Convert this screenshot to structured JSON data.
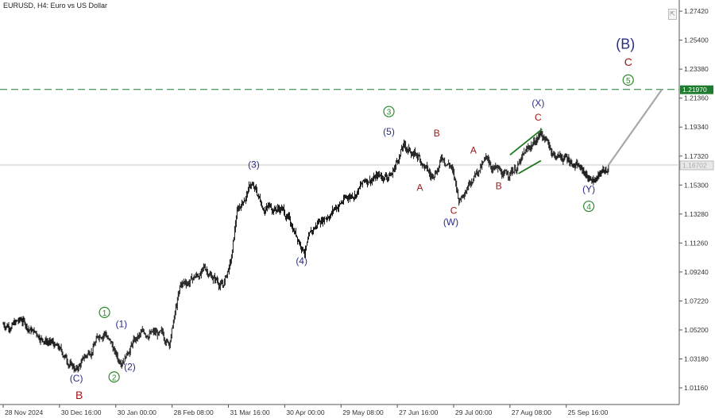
{
  "window": {
    "title": "EURUSD, H4:  Euro vs US Dollar"
  },
  "colors": {
    "candle": "#000000",
    "grid_line": "#c8c8c8",
    "dashed_level": "#5c9a6a",
    "price_label_bg": "#1e7a2e",
    "current_label_bg": "#e8e8e8",
    "wave_blue": "#2a2d87",
    "wave_red": "#a3161a",
    "wave_green": "#2c8a2c",
    "projection": "#a8a8a8",
    "trendline": "#1f7a1f"
  },
  "chart_data": {
    "type": "candlestick",
    "symbol": "EURUSD",
    "timeframe": "H4",
    "ylim": [
      1.0,
      1.282
    ],
    "y_ticks": [
      "1.27420",
      "1.25400",
      "1.23380",
      "1.21360",
      "1.19340",
      "1.17320",
      "1.15300",
      "1.13280",
      "1.11260",
      "1.09240",
      "1.07220",
      "1.05200",
      "1.03180",
      "1.01160"
    ],
    "x_ticks": [
      "28 Nov 2024",
      "30 Dec 16:00",
      "30 Jan 00:00",
      "28 Feb 08:00",
      "31 Mar 16:00",
      "30 Apr 00:00",
      "29 May 08:00",
      "27 Jun 16:00",
      "29 Jul 00:00",
      "27 Aug 08:00",
      "25 Sep 16:00"
    ],
    "price_path": [
      {
        "t": 0.0,
        "p": 1.056
      },
      {
        "t": 0.35,
        "p": 1.058
      },
      {
        "t": 0.5,
        "p": 1.052
      },
      {
        "t": 0.8,
        "p": 1.045
      },
      {
        "t": 1.1,
        "p": 1.033
      },
      {
        "t": 1.3,
        "p": 1.024
      },
      {
        "t": 1.5,
        "p": 1.035
      },
      {
        "t": 1.7,
        "p": 1.048
      },
      {
        "t": 1.8,
        "p": 1.053
      },
      {
        "t": 2.05,
        "p": 1.03
      },
      {
        "t": 2.3,
        "p": 1.044
      },
      {
        "t": 2.6,
        "p": 1.051
      },
      {
        "t": 2.95,
        "p": 1.044
      },
      {
        "t": 3.15,
        "p": 1.082
      },
      {
        "t": 3.6,
        "p": 1.094
      },
      {
        "t": 3.9,
        "p": 1.083
      },
      {
        "t": 4.05,
        "p": 1.1
      },
      {
        "t": 4.15,
        "p": 1.133
      },
      {
        "t": 4.4,
        "p": 1.154
      },
      {
        "t": 4.6,
        "p": 1.139
      },
      {
        "t": 4.95,
        "p": 1.137
      },
      {
        "t": 5.35,
        "p": 1.109
      },
      {
        "t": 5.6,
        "p": 1.127
      },
      {
        "t": 5.9,
        "p": 1.138
      },
      {
        "t": 6.2,
        "p": 1.147
      },
      {
        "t": 6.5,
        "p": 1.158
      },
      {
        "t": 6.9,
        "p": 1.161
      },
      {
        "t": 7.1,
        "p": 1.18
      },
      {
        "t": 7.4,
        "p": 1.172
      },
      {
        "t": 7.6,
        "p": 1.158
      },
      {
        "t": 7.8,
        "p": 1.173
      },
      {
        "t": 7.95,
        "p": 1.168
      },
      {
        "t": 8.1,
        "p": 1.142
      },
      {
        "t": 8.3,
        "p": 1.16
      },
      {
        "t": 8.6,
        "p": 1.17
      },
      {
        "t": 8.9,
        "p": 1.158
      },
      {
        "t": 9.2,
        "p": 1.17
      },
      {
        "t": 9.55,
        "p": 1.19
      },
      {
        "t": 9.8,
        "p": 1.174
      },
      {
        "t": 10.1,
        "p": 1.17
      },
      {
        "t": 10.4,
        "p": 1.158
      },
      {
        "t": 10.55,
        "p": 1.157
      },
      {
        "t": 10.75,
        "p": 1.167
      }
    ],
    "projection": {
      "from": {
        "t": 10.75,
        "p": 1.167
      },
      "to": {
        "t": 11.7,
        "p": 1.2197
      }
    },
    "resistance_level": {
      "value": "1.21970",
      "p": 1.2197
    },
    "current_price": {
      "value": "1.16702",
      "p": 1.167
    },
    "trendlines": [
      {
        "from": {
          "t": 9.0,
          "p": 1.174
        },
        "to": {
          "t": 9.57,
          "p": 1.192
        }
      },
      {
        "from": {
          "t": 9.15,
          "p": 1.161
        },
        "to": {
          "t": 9.55,
          "p": 1.17
        }
      }
    ],
    "wave_labels": [
      {
        "text": "(C)",
        "t": 1.3,
        "p": 1.016,
        "style": "blue"
      },
      {
        "text": "B",
        "t": 1.35,
        "p": 1.004,
        "style": "red-big"
      },
      {
        "text": "1",
        "t": 1.8,
        "p": 1.062,
        "style": "green-circle"
      },
      {
        "text": "(1)",
        "t": 2.1,
        "p": 1.054,
        "style": "blue"
      },
      {
        "text": "(2)",
        "t": 2.25,
        "p": 1.024,
        "style": "blue"
      },
      {
        "text": "2",
        "t": 1.97,
        "p": 1.017,
        "style": "green-circle"
      },
      {
        "text": "(3)",
        "t": 4.45,
        "p": 1.165,
        "style": "blue"
      },
      {
        "text": "(4)",
        "t": 5.3,
        "p": 1.098,
        "style": "blue"
      },
      {
        "text": "3",
        "t": 6.85,
        "p": 1.202,
        "style": "green-circle"
      },
      {
        "text": "(5)",
        "t": 6.85,
        "p": 1.188,
        "style": "blue"
      },
      {
        "text": "B",
        "t": 7.7,
        "p": 1.187,
        "style": "red"
      },
      {
        "text": "A",
        "t": 7.4,
        "p": 1.149,
        "style": "red"
      },
      {
        "text": "C",
        "t": 8.0,
        "p": 1.133,
        "style": "red"
      },
      {
        "text": "(W)",
        "t": 7.95,
        "p": 1.125,
        "style": "blue"
      },
      {
        "text": "A",
        "t": 8.35,
        "p": 1.175,
        "style": "red"
      },
      {
        "text": "B",
        "t": 8.8,
        "p": 1.15,
        "style": "red"
      },
      {
        "text": "(X)",
        "t": 9.5,
        "p": 1.208,
        "style": "blue"
      },
      {
        "text": "C",
        "t": 9.5,
        "p": 1.198,
        "style": "red"
      },
      {
        "text": "(Y)",
        "t": 10.4,
        "p": 1.148,
        "style": "blue"
      },
      {
        "text": "4",
        "t": 10.4,
        "p": 1.136,
        "style": "green-circle"
      },
      {
        "text": "(B)",
        "t": 11.05,
        "p": 1.248,
        "style": "blue-big"
      },
      {
        "text": "C",
        "t": 11.1,
        "p": 1.236,
        "style": "red-big"
      },
      {
        "text": "5",
        "t": 11.1,
        "p": 1.224,
        "style": "green-circle"
      }
    ]
  }
}
